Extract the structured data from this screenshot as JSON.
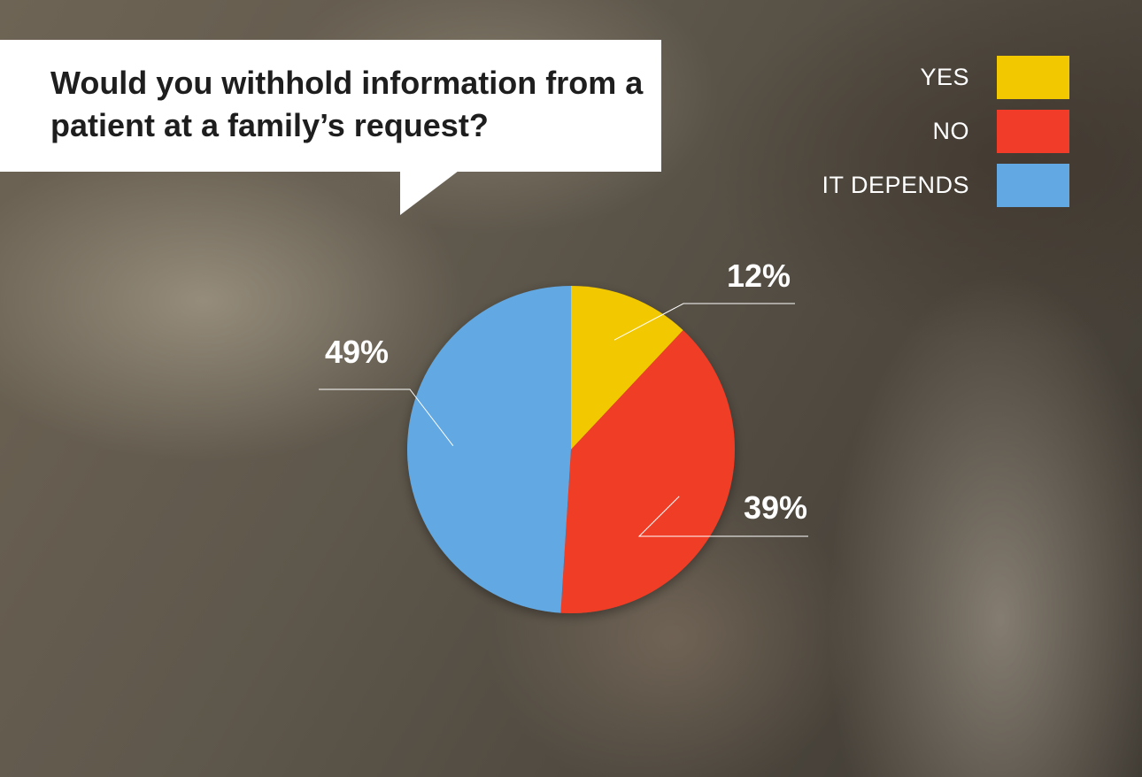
{
  "chart_data": {
    "type": "pie",
    "title": "Would you withhold information from a patient at a family’s request?",
    "categories": [
      "YES",
      "NO",
      "IT DEPENDS"
    ],
    "values": [
      12,
      39,
      49
    ],
    "data_labels": [
      "12%",
      "39%",
      "49%"
    ],
    "colors": [
      "#f2c800",
      "#f03c28",
      "#62a8e2"
    ],
    "legend_position": "top-right"
  }
}
